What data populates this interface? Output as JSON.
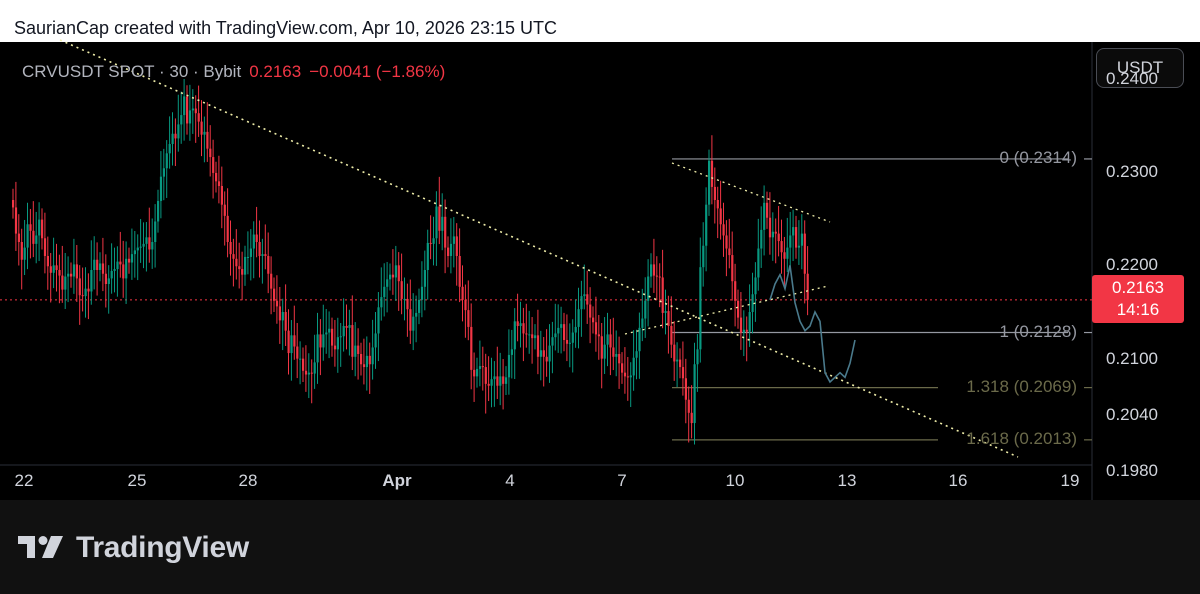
{
  "header": {
    "caption": "SaurianCap created with TradingView.com, Apr 10, 2026 23:15 UTC"
  },
  "legend": {
    "symbol": "CRVUSDT SPOT · 30 · Bybit",
    "price": "0.2163",
    "change": "−0.0041 (−1.86%)"
  },
  "currency_button": "USDT",
  "price_axis": {
    "labels": [
      "0.2400",
      "0.2300",
      "0.2200",
      "0.2100",
      "0.2040",
      "0.1980"
    ]
  },
  "time_axis": {
    "labels": [
      "22",
      "25",
      "28",
      "Apr",
      "4",
      "7",
      "10",
      "13",
      "16",
      "19"
    ]
  },
  "current_price": {
    "price": "0.2163",
    "countdown": "14:16"
  },
  "fib_levels": [
    {
      "label": "0 (0.2314)",
      "value": 0.2314,
      "color": "#9598a1"
    },
    {
      "label": "1 (0.2128)",
      "value": 0.2128,
      "color": "#9598a1"
    },
    {
      "label": "1.318 (0.2069)",
      "value": 0.2069,
      "color": "#6b6a4a"
    },
    {
      "label": "1.618 (0.2013)",
      "value": 0.2013,
      "color": "#6b6a4a"
    }
  ],
  "colors": {
    "up": "#089981",
    "down": "#f23645",
    "trendline": "#f0eeaa",
    "projection": "#4a7a8c"
  },
  "brand": {
    "name": "TradingView"
  },
  "chart_data": {
    "type": "candlestick",
    "series": [
      {
        "name": "CRVUSDT",
        "values": [
          0.2262,
          0.2234,
          0.2225,
          0.2206,
          0.2219,
          0.2244,
          0.2237,
          0.2223,
          0.2232,
          0.2249,
          0.2229,
          0.221,
          0.2199,
          0.2192,
          0.22,
          0.2195,
          0.2189,
          0.2174,
          0.2188,
          0.2191,
          0.2188,
          0.2201,
          0.2186,
          0.2168,
          0.2167,
          0.2175,
          0.2172,
          0.2195,
          0.2206,
          0.2195,
          0.2202,
          0.2191,
          0.218,
          0.2186,
          0.2194,
          0.2196,
          0.2204,
          0.2201,
          0.2186,
          0.2207,
          0.2203,
          0.2212,
          0.2216,
          0.2219,
          0.222,
          0.2223,
          0.223,
          0.2217,
          0.2225,
          0.2247,
          0.2269,
          0.2295,
          0.2304,
          0.232,
          0.233,
          0.2341,
          0.2336,
          0.2351,
          0.2361,
          0.2381,
          0.2352,
          0.2366,
          0.2368,
          0.2363,
          0.2354,
          0.234,
          0.2343,
          0.2325,
          0.2316,
          0.2299,
          0.229,
          0.2285,
          0.2265,
          0.2253,
          0.2225,
          0.2212,
          0.2207,
          0.2199,
          0.2196,
          0.219,
          0.2209,
          0.2209,
          0.2218,
          0.2233,
          0.2225,
          0.221,
          0.2212,
          0.221,
          0.2191,
          0.2175,
          0.2162,
          0.2156,
          0.2141,
          0.215,
          0.213,
          0.2106,
          0.2125,
          0.2113,
          0.21,
          0.21,
          0.2087,
          0.2083,
          0.2085,
          0.2084,
          0.2096,
          0.2126,
          0.2112,
          0.2126,
          0.2128,
          0.2132,
          0.2114,
          0.211,
          0.2123,
          0.2124,
          0.2135,
          0.2133,
          0.2136,
          0.2102,
          0.2114,
          0.2105,
          0.2094,
          0.2091,
          0.2103,
          0.2094,
          0.2112,
          0.2127,
          0.2155,
          0.2166,
          0.2177,
          0.2185,
          0.219,
          0.2187,
          0.22,
          0.2183,
          0.2164,
          0.2164,
          0.2153,
          0.213,
          0.2145,
          0.2149,
          0.2163,
          0.2177,
          0.2195,
          0.2224,
          0.2223,
          0.2229,
          0.2263,
          0.2237,
          0.2252,
          0.2219,
          0.221,
          0.2223,
          0.2231,
          0.221,
          0.2177,
          0.2163,
          0.2152,
          0.2134,
          0.2088,
          0.2081,
          0.2089,
          0.2092,
          0.2091,
          0.2073,
          0.2071,
          0.2078,
          0.2081,
          0.2071,
          0.2081,
          0.2073,
          0.208,
          0.2104,
          0.211,
          0.214,
          0.2135,
          0.2138,
          0.2127,
          0.2126,
          0.2126,
          0.2122,
          0.2125,
          0.2102,
          0.2109,
          0.2102,
          0.2097,
          0.2114,
          0.2123,
          0.2127,
          0.2133,
          0.2137,
          0.212,
          0.2116,
          0.2117,
          0.2128,
          0.2134,
          0.2153,
          0.2167,
          0.2169,
          0.2158,
          0.2144,
          0.2139,
          0.2126,
          0.2124,
          0.21,
          0.2115,
          0.2126,
          0.2112,
          0.2102,
          0.2105,
          0.2095,
          0.2085,
          0.2081,
          0.208,
          0.2082,
          0.2101,
          0.2108,
          0.2133,
          0.2143,
          0.2162,
          0.2188,
          0.2201,
          0.2189,
          0.2188,
          0.2187,
          0.2149,
          0.2151,
          0.2135,
          0.2115,
          0.2097,
          0.2099,
          0.2091,
          0.2079,
          0.2056,
          0.2042,
          0.2031,
          0.2094,
          0.211,
          0.2198,
          0.2221,
          0.2265,
          0.2312,
          0.2284,
          0.227,
          0.2261,
          0.2244,
          0.2232,
          0.2218,
          0.2211,
          0.2183,
          0.2162,
          0.2144,
          0.2128,
          0.2131,
          0.2129,
          0.215,
          0.2169,
          0.2187,
          0.2218,
          0.2238,
          0.2267,
          0.2251,
          0.223,
          0.2236,
          0.2234,
          0.2226,
          0.2214,
          0.2207,
          0.2219,
          0.2232,
          0.2241,
          0.2219,
          0.2221,
          0.2234,
          0.2191,
          0.2163
        ]
      }
    ],
    "projection": [
      0.2163,
      0.218,
      0.219,
      0.2175,
      0.22,
      0.216,
      0.214,
      0.213,
      0.2135,
      0.215,
      0.214,
      0.2085,
      0.2075,
      0.208,
      0.2085,
      0.208,
      0.2095,
      0.212
    ],
    "annotations": [
      "descending trendline",
      "wedge upper line",
      "wedge lower line",
      "fib retracement 0 / 1 / 1.318 / 1.618"
    ],
    "ylim": [
      0.198,
      0.24
    ],
    "current_price_line": 0.2163,
    "grid": false
  }
}
